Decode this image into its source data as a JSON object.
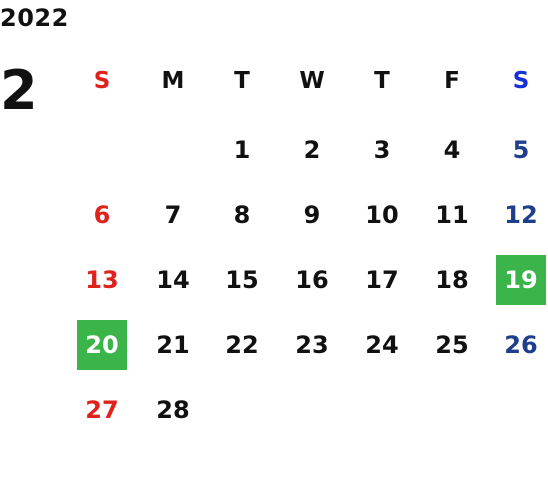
{
  "calendar": {
    "year": "2022",
    "month": "2",
    "weekdays": [
      "S",
      "M",
      "T",
      "W",
      "T",
      "F",
      "S"
    ],
    "weeks": [
      [
        "",
        "",
        "1",
        "2",
        "3",
        "4",
        "5"
      ],
      [
        "6",
        "7",
        "8",
        "9",
        "10",
        "11",
        "12"
      ],
      [
        "13",
        "14",
        "15",
        "16",
        "17",
        "18",
        "19"
      ],
      [
        "20",
        "21",
        "22",
        "23",
        "24",
        "25",
        "26"
      ],
      [
        "27",
        "28",
        "",
        "",
        "",
        "",
        ""
      ]
    ],
    "highlighted_days": [
      "19",
      "20"
    ],
    "colors": {
      "sunday": "#e0221c",
      "saturday_header": "#1530d8",
      "saturday": "#1f3e8c",
      "highlight": "#3bb54a",
      "text": "#111111"
    }
  }
}
